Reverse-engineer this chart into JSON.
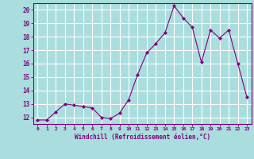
{
  "x": [
    0,
    1,
    2,
    3,
    4,
    5,
    6,
    7,
    8,
    9,
    10,
    11,
    12,
    13,
    14,
    15,
    16,
    17,
    18,
    19,
    20,
    21,
    22,
    23
  ],
  "y": [
    11.8,
    11.8,
    12.4,
    13.0,
    12.9,
    12.8,
    12.7,
    12.0,
    11.9,
    12.3,
    13.3,
    15.2,
    16.8,
    17.5,
    18.3,
    20.3,
    19.4,
    18.7,
    16.1,
    18.5,
    17.9,
    18.5,
    16.0,
    13.5
  ],
  "line_color": "#800080",
  "marker_color": "#800080",
  "bg_color": "#aadddd",
  "grid_color": "#ffffff",
  "xlabel": "Windchill (Refroidissement éolien,°C)",
  "ylabel_ticks": [
    12,
    13,
    14,
    15,
    16,
    17,
    18,
    19,
    20
  ],
  "xlim": [
    -0.5,
    23.5
  ],
  "ylim": [
    11.5,
    20.5
  ],
  "xticks": [
    0,
    1,
    2,
    3,
    4,
    5,
    6,
    7,
    8,
    9,
    10,
    11,
    12,
    13,
    14,
    15,
    16,
    17,
    18,
    19,
    20,
    21,
    22,
    23
  ]
}
